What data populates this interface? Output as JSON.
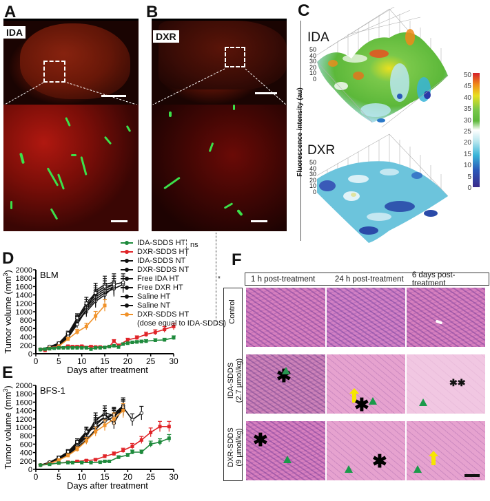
{
  "panels": {
    "A": {
      "letter": "A",
      "tag": "IDA"
    },
    "B": {
      "letter": "B",
      "tag": "DXR"
    },
    "C": {
      "letter": "C",
      "y_axis_label": "Fluorescence intensity (au)",
      "surfaces": [
        {
          "label": "IDA",
          "z_ticks": [
            "50",
            "40",
            "30",
            "20",
            "10",
            "0"
          ]
        },
        {
          "label": "DXR",
          "z_ticks": [
            "50",
            "40",
            "30",
            "20",
            "10",
            "0"
          ]
        }
      ],
      "colorbar": {
        "ticks": [
          "50",
          "45",
          "40",
          "35",
          "30",
          "25",
          "20",
          "15",
          "10",
          "5",
          "0"
        ],
        "colors": [
          "#d4202a",
          "#f08a1a",
          "#e8e020",
          "#5cb83a",
          "#7ac84a",
          "#ffffff",
          "#b8e6ee",
          "#38b4d8",
          "#2a58b8",
          "#3a2a8a"
        ]
      }
    },
    "D": {
      "letter": "D"
    },
    "E": {
      "letter": "E"
    },
    "F": {
      "letter": "F",
      "columns": [
        "1 h post-treatment",
        "24 h post-treatment",
        "6 days post-treatment"
      ],
      "rows": [
        {
          "label": "Control",
          "sublabel": ""
        },
        {
          "label": "IDA-SDDS",
          "sublabel": "(2.7 μmol/kg)"
        },
        {
          "label": "DXR-SDDS",
          "sublabel": "(9 μmol/kg)"
        }
      ],
      "markers": {
        "single_star": "✱",
        "double_star": "✱✱"
      }
    }
  },
  "legend": {
    "items": [
      {
        "label": "IDA-SDDS HT",
        "color": "#1e8a3c"
      },
      {
        "label": "DXR-SDDS HT",
        "color": "#e02428"
      },
      {
        "label": "IDA-SDDS NT",
        "color": "#111111"
      },
      {
        "label": "DXR-SDDS NT",
        "color": "#111111"
      },
      {
        "label": "Free IDA HT",
        "color": "#111111"
      },
      {
        "label": "Free DXR HT",
        "color": "#111111"
      },
      {
        "label": "Saline HT",
        "color": "#111111"
      },
      {
        "label": "Saline NT",
        "color": "#111111"
      },
      {
        "label": "DXR-SDDS HT",
        "color": "#f0922a"
      }
    ],
    "note": "(dose equal to IDA-SDDS)",
    "sig_ns": "ns",
    "sig_star": "*"
  },
  "chart_data": [
    {
      "type": "line",
      "title": "BLM",
      "panel": "D",
      "xlabel": "Days after treatment",
      "ylabel": "Tumor volume (mm3)",
      "xlim": [
        0,
        30
      ],
      "ylim": [
        0,
        2000
      ],
      "xticks": [
        0,
        5,
        10,
        15,
        20,
        25,
        30
      ],
      "yticks": [
        0,
        200,
        400,
        600,
        800,
        1000,
        1200,
        1400,
        1600,
        1800,
        2000
      ],
      "series": [
        {
          "name": "IDA-SDDS HT",
          "color": "#1e8a3c",
          "x": [
            1,
            2,
            3,
            4,
            5,
            6,
            7,
            8,
            9,
            10,
            11,
            12,
            13,
            14,
            15,
            16,
            17,
            18,
            19,
            20,
            21,
            22,
            23,
            24,
            26,
            28,
            30
          ],
          "y": [
            100,
            110,
            120,
            130,
            140,
            140,
            140,
            140,
            140,
            140,
            140,
            110,
            140,
            140,
            150,
            170,
            190,
            160,
            230,
            250,
            270,
            280,
            290,
            300,
            320,
            330,
            380
          ]
        },
        {
          "name": "DXR-SDDS HT",
          "color": "#e02428",
          "x": [
            1,
            2,
            3,
            4,
            5,
            7,
            8,
            9,
            10,
            12,
            13,
            14,
            16,
            17,
            18,
            20,
            22,
            24,
            26,
            28,
            30
          ],
          "y": [
            100,
            80,
            120,
            140,
            150,
            180,
            170,
            170,
            180,
            170,
            160,
            160,
            170,
            300,
            200,
            330,
            380,
            460,
            510,
            580,
            650
          ]
        },
        {
          "name": "IDA-SDDS NT",
          "color": "#111111",
          "x": [
            1,
            3,
            5,
            7,
            9,
            11,
            13,
            15,
            17,
            19
          ],
          "y": [
            100,
            150,
            200,
            400,
            750,
            1050,
            1300,
            1450,
            1550,
            1650
          ]
        },
        {
          "name": "DXR-SDDS NT",
          "color": "#111111",
          "x": [
            1,
            3,
            5,
            7,
            9,
            11,
            13,
            15,
            17,
            19
          ],
          "y": [
            100,
            160,
            220,
            450,
            800,
            1150,
            1400,
            1550,
            1650,
            1700
          ]
        },
        {
          "name": "Free IDA HT",
          "color": "#111111",
          "x": [
            1,
            3,
            5,
            7,
            9,
            11,
            13,
            15,
            17
          ],
          "y": [
            100,
            150,
            210,
            420,
            780,
            1000,
            1250,
            1400,
            1600
          ]
        },
        {
          "name": "Free DXR HT",
          "color": "#111111",
          "x": [
            1,
            3,
            5,
            7,
            9,
            11,
            13,
            15,
            17
          ],
          "y": [
            100,
            140,
            200,
            380,
            700,
            1050,
            1500,
            1650,
            1700
          ]
        },
        {
          "name": "Saline HT",
          "color": "#111111",
          "x": [
            1,
            3,
            5,
            7,
            9,
            11,
            13,
            15,
            17
          ],
          "y": [
            100,
            150,
            230,
            430,
            820,
            1100,
            1350,
            1500,
            1600
          ]
        },
        {
          "name": "Saline NT",
          "color": "#111111",
          "x": [
            1,
            3,
            5,
            7,
            9,
            11,
            13,
            15,
            17
          ],
          "y": [
            100,
            170,
            250,
            480,
            850,
            1200,
            1450,
            1600,
            1650
          ]
        },
        {
          "name": "DXR-SDDS HT (dose equal to IDA-SDDS)",
          "color": "#f0922a",
          "x": [
            1,
            3,
            5,
            7,
            9,
            11,
            13,
            15
          ],
          "y": [
            100,
            130,
            180,
            350,
            520,
            650,
            900,
            1150
          ]
        }
      ]
    },
    {
      "type": "line",
      "title": "BFS-1",
      "panel": "E",
      "xlabel": "Days after treatment",
      "ylabel": "Tumor volume (mm3)",
      "xlim": [
        0,
        30
      ],
      "ylim": [
        0,
        2000
      ],
      "xticks": [
        0,
        5,
        10,
        15,
        20,
        25,
        30
      ],
      "yticks": [
        0,
        200,
        400,
        600,
        800,
        1000,
        1200,
        1400,
        1600,
        1800,
        2000
      ],
      "series": [
        {
          "name": "IDA-SDDS HT",
          "color": "#1e8a3c",
          "x": [
            1,
            3,
            5,
            7,
            8,
            10,
            12,
            14,
            15,
            16,
            18,
            20,
            21,
            23,
            25,
            27,
            29
          ],
          "y": [
            100,
            120,
            150,
            160,
            160,
            160,
            160,
            170,
            190,
            190,
            290,
            340,
            410,
            410,
            600,
            650,
            740
          ]
        },
        {
          "name": "DXR-SDDS HT",
          "color": "#e02428",
          "x": [
            1,
            3,
            5,
            7,
            9,
            11,
            13,
            15,
            17,
            19,
            21,
            23,
            25,
            27,
            29
          ],
          "y": [
            100,
            130,
            150,
            170,
            190,
            210,
            230,
            310,
            370,
            450,
            550,
            700,
            880,
            1020,
            1020
          ]
        },
        {
          "name": "IDA-SDDS NT",
          "color": "#111111",
          "x": [
            1,
            3,
            5,
            7,
            9,
            11,
            13,
            15,
            17,
            19,
            21,
            23
          ],
          "y": [
            100,
            150,
            240,
            350,
            560,
            760,
            1200,
            1300,
            1100,
            1480,
            1180,
            1340
          ]
        },
        {
          "name": "DXR-SDDS NT",
          "color": "#111111",
          "x": [
            1,
            3,
            5,
            7,
            9,
            11,
            13,
            15,
            17,
            19
          ],
          "y": [
            100,
            160,
            280,
            400,
            600,
            850,
            1150,
            1350,
            1280,
            1520
          ]
        },
        {
          "name": "Free IDA HT",
          "color": "#111111",
          "x": [
            1,
            3,
            5,
            7,
            9,
            11,
            13,
            15,
            17,
            19
          ],
          "y": [
            100,
            140,
            230,
            350,
            520,
            700,
            950,
            1180,
            1320,
            1520
          ]
        },
        {
          "name": "Free DXR HT",
          "color": "#111111",
          "x": [
            1,
            3,
            5,
            7,
            9,
            11,
            13,
            15,
            17,
            19
          ],
          "y": [
            100,
            150,
            250,
            380,
            580,
            800,
            1100,
            1250,
            1300,
            1450
          ]
        },
        {
          "name": "Saline HT",
          "color": "#111111",
          "x": [
            1,
            3,
            5,
            7,
            9,
            11,
            13,
            15,
            17,
            19
          ],
          "y": [
            100,
            160,
            260,
            410,
            620,
            880,
            1000,
            1150,
            1250,
            1450
          ]
        },
        {
          "name": "Saline NT",
          "color": "#111111",
          "x": [
            1,
            3,
            5,
            7,
            9,
            11,
            13,
            15,
            17,
            19
          ],
          "y": [
            100,
            170,
            280,
            420,
            650,
            900,
            1050,
            1250,
            1300,
            1480
          ]
        },
        {
          "name": "DXR-SDDS HT (dose equal to IDA-SDDS)",
          "color": "#f0922a",
          "x": [
            1,
            3,
            5,
            7,
            9,
            11,
            13,
            15,
            17,
            19
          ],
          "y": [
            100,
            140,
            220,
            330,
            480,
            680,
            900,
            1050,
            1200,
            1400
          ]
        }
      ]
    }
  ]
}
